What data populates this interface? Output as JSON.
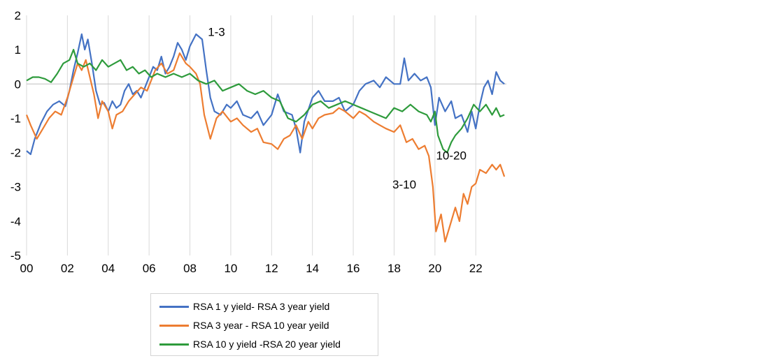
{
  "chart_data": {
    "type": "line",
    "title": "",
    "xlabel": "",
    "ylabel": "",
    "xlim": [
      2000,
      2023.5
    ],
    "ylim": [
      -5,
      2
    ],
    "y_ticks": [
      2,
      1,
      0,
      -1,
      -2,
      -3,
      -4,
      -5
    ],
    "y_tick_labels": [
      "2",
      "1",
      "0",
      "-1",
      "-2",
      "-3",
      "-4",
      "-5"
    ],
    "x_ticks": [
      2000,
      2002,
      2004,
      2006,
      2008,
      2010,
      2012,
      2014,
      2016,
      2018,
      2020,
      2022
    ],
    "x_tick_labels": [
      "00",
      "02",
      "04",
      "06",
      "08",
      "10",
      "12",
      "14",
      "16",
      "18",
      "20",
      "22"
    ],
    "grid": "vertical",
    "legend_position": "bottom",
    "colors": {
      "s1": "#4472c4",
      "s2": "#ed7d31",
      "s3": "#2e9b3c",
      "grid": "#d9d9d9",
      "zero": "#bfbfbf"
    },
    "annotations": [
      {
        "text": "1-3",
        "x": 2009.3,
        "y": 1.4
      },
      {
        "text": "10-20",
        "x": 2020.8,
        "y": -2.2
      },
      {
        "text": "3-10",
        "x": 2018.5,
        "y": -3.05
      }
    ],
    "series": [
      {
        "name": "RSA 1 y yield- RSA 3 year yield",
        "points": [
          [
            2000.0,
            -1.95
          ],
          [
            2000.2,
            -2.05
          ],
          [
            2000.4,
            -1.6
          ],
          [
            2000.7,
            -1.15
          ],
          [
            2001.0,
            -0.8
          ],
          [
            2001.3,
            -0.6
          ],
          [
            2001.6,
            -0.5
          ],
          [
            2001.9,
            -0.65
          ],
          [
            2002.1,
            -0.2
          ],
          [
            2002.3,
            0.4
          ],
          [
            2002.5,
            0.9
          ],
          [
            2002.7,
            1.45
          ],
          [
            2002.85,
            1.0
          ],
          [
            2003.0,
            1.3
          ],
          [
            2003.2,
            0.6
          ],
          [
            2003.4,
            -0.2
          ],
          [
            2003.6,
            -0.6
          ],
          [
            2003.8,
            -0.55
          ],
          [
            2004.0,
            -0.8
          ],
          [
            2004.2,
            -0.5
          ],
          [
            2004.4,
            -0.7
          ],
          [
            2004.6,
            -0.6
          ],
          [
            2004.8,
            -0.2
          ],
          [
            2005.0,
            0.0
          ],
          [
            2005.2,
            -0.3
          ],
          [
            2005.4,
            -0.2
          ],
          [
            2005.6,
            -0.4
          ],
          [
            2005.8,
            -0.1
          ],
          [
            2006.0,
            0.2
          ],
          [
            2006.2,
            0.5
          ],
          [
            2006.4,
            0.4
          ],
          [
            2006.6,
            0.8
          ],
          [
            2006.8,
            0.3
          ],
          [
            2007.0,
            0.5
          ],
          [
            2007.2,
            0.8
          ],
          [
            2007.4,
            1.2
          ],
          [
            2007.6,
            1.0
          ],
          [
            2007.8,
            0.7
          ],
          [
            2008.0,
            1.1
          ],
          [
            2008.3,
            1.45
          ],
          [
            2008.6,
            1.3
          ],
          [
            2008.8,
            0.4
          ],
          [
            2009.0,
            -0.4
          ],
          [
            2009.2,
            -0.8
          ],
          [
            2009.5,
            -0.9
          ],
          [
            2009.8,
            -0.6
          ],
          [
            2010.0,
            -0.7
          ],
          [
            2010.3,
            -0.5
          ],
          [
            2010.6,
            -0.9
          ],
          [
            2011.0,
            -1.0
          ],
          [
            2011.3,
            -0.8
          ],
          [
            2011.6,
            -1.2
          ],
          [
            2012.0,
            -0.9
          ],
          [
            2012.3,
            -0.3
          ],
          [
            2012.6,
            -0.8
          ],
          [
            2013.0,
            -0.9
          ],
          [
            2013.2,
            -1.3
          ],
          [
            2013.4,
            -2.0
          ],
          [
            2013.6,
            -1.1
          ],
          [
            2014.0,
            -0.4
          ],
          [
            2014.3,
            -0.2
          ],
          [
            2014.6,
            -0.5
          ],
          [
            2015.0,
            -0.5
          ],
          [
            2015.3,
            -0.4
          ],
          [
            2015.6,
            -0.8
          ],
          [
            2016.0,
            -0.6
          ],
          [
            2016.3,
            -0.2
          ],
          [
            2016.6,
            0.0
          ],
          [
            2017.0,
            0.1
          ],
          [
            2017.3,
            -0.1
          ],
          [
            2017.6,
            0.2
          ],
          [
            2018.0,
            0.0
          ],
          [
            2018.3,
            0.0
          ],
          [
            2018.5,
            0.75
          ],
          [
            2018.7,
            0.1
          ],
          [
            2019.0,
            0.3
          ],
          [
            2019.3,
            0.1
          ],
          [
            2019.6,
            0.2
          ],
          [
            2019.8,
            -0.1
          ],
          [
            2020.0,
            -1.2
          ],
          [
            2020.2,
            -0.4
          ],
          [
            2020.5,
            -0.8
          ],
          [
            2020.8,
            -0.5
          ],
          [
            2021.0,
            -1.0
          ],
          [
            2021.3,
            -0.9
          ],
          [
            2021.6,
            -1.4
          ],
          [
            2021.8,
            -0.8
          ],
          [
            2022.0,
            -1.3
          ],
          [
            2022.2,
            -0.6
          ],
          [
            2022.4,
            -0.1
          ],
          [
            2022.6,
            0.1
          ],
          [
            2022.8,
            -0.3
          ],
          [
            2023.0,
            0.35
          ],
          [
            2023.2,
            0.1
          ],
          [
            2023.4,
            0.0
          ]
        ]
      },
      {
        "name": "RSA 3 year - RSA 10 year yeild",
        "points": [
          [
            2000.0,
            -0.9
          ],
          [
            2000.2,
            -1.2
          ],
          [
            2000.5,
            -1.6
          ],
          [
            2000.8,
            -1.3
          ],
          [
            2001.1,
            -1.0
          ],
          [
            2001.4,
            -0.8
          ],
          [
            2001.7,
            -0.9
          ],
          [
            2002.0,
            -0.4
          ],
          [
            2002.3,
            0.2
          ],
          [
            2002.5,
            0.6
          ],
          [
            2002.7,
            0.4
          ],
          [
            2002.9,
            0.7
          ],
          [
            2003.1,
            0.2
          ],
          [
            2003.3,
            -0.3
          ],
          [
            2003.5,
            -1.0
          ],
          [
            2003.7,
            -0.5
          ],
          [
            2004.0,
            -0.8
          ],
          [
            2004.2,
            -1.3
          ],
          [
            2004.4,
            -0.9
          ],
          [
            2004.7,
            -0.8
          ],
          [
            2005.0,
            -0.5
          ],
          [
            2005.3,
            -0.3
          ],
          [
            2005.6,
            -0.1
          ],
          [
            2005.9,
            -0.2
          ],
          [
            2006.1,
            0.1
          ],
          [
            2006.3,
            0.4
          ],
          [
            2006.6,
            0.6
          ],
          [
            2006.9,
            0.3
          ],
          [
            2007.2,
            0.4
          ],
          [
            2007.5,
            0.9
          ],
          [
            2007.8,
            0.6
          ],
          [
            2008.0,
            0.5
          ],
          [
            2008.3,
            0.3
          ],
          [
            2008.5,
            0.0
          ],
          [
            2008.7,
            -0.9
          ],
          [
            2009.0,
            -1.6
          ],
          [
            2009.3,
            -1.0
          ],
          [
            2009.6,
            -0.8
          ],
          [
            2010.0,
            -1.1
          ],
          [
            2010.3,
            -1.0
          ],
          [
            2010.6,
            -1.2
          ],
          [
            2011.0,
            -1.4
          ],
          [
            2011.3,
            -1.3
          ],
          [
            2011.6,
            -1.7
          ],
          [
            2012.0,
            -1.75
          ],
          [
            2012.3,
            -1.9
          ],
          [
            2012.6,
            -1.6
          ],
          [
            2012.9,
            -1.5
          ],
          [
            2013.2,
            -1.2
          ],
          [
            2013.5,
            -1.6
          ],
          [
            2013.8,
            -1.1
          ],
          [
            2014.0,
            -1.3
          ],
          [
            2014.3,
            -1.0
          ],
          [
            2014.6,
            -0.9
          ],
          [
            2015.0,
            -0.85
          ],
          [
            2015.3,
            -0.7
          ],
          [
            2015.6,
            -0.8
          ],
          [
            2016.0,
            -1.0
          ],
          [
            2016.3,
            -0.8
          ],
          [
            2016.6,
            -0.9
          ],
          [
            2017.0,
            -1.1
          ],
          [
            2017.3,
            -1.2
          ],
          [
            2017.6,
            -1.3
          ],
          [
            2018.0,
            -1.4
          ],
          [
            2018.3,
            -1.2
          ],
          [
            2018.6,
            -1.7
          ],
          [
            2018.9,
            -1.6
          ],
          [
            2019.2,
            -1.9
          ],
          [
            2019.5,
            -1.8
          ],
          [
            2019.7,
            -2.1
          ],
          [
            2019.9,
            -3.0
          ],
          [
            2020.05,
            -4.3
          ],
          [
            2020.3,
            -3.8
          ],
          [
            2020.5,
            -4.6
          ],
          [
            2020.7,
            -4.2
          ],
          [
            2021.0,
            -3.6
          ],
          [
            2021.2,
            -4.0
          ],
          [
            2021.4,
            -3.2
          ],
          [
            2021.6,
            -3.5
          ],
          [
            2021.8,
            -3.0
          ],
          [
            2022.0,
            -2.9
          ],
          [
            2022.2,
            -2.5
          ],
          [
            2022.5,
            -2.6
          ],
          [
            2022.8,
            -2.35
          ],
          [
            2023.0,
            -2.5
          ],
          [
            2023.2,
            -2.35
          ],
          [
            2023.4,
            -2.7
          ]
        ]
      },
      {
        "name": "RSA 10 y yield -RSA 20 year yield",
        "points": [
          [
            2000.0,
            0.1
          ],
          [
            2000.3,
            0.2
          ],
          [
            2000.6,
            0.2
          ],
          [
            2000.9,
            0.15
          ],
          [
            2001.2,
            0.05
          ],
          [
            2001.5,
            0.3
          ],
          [
            2001.8,
            0.6
          ],
          [
            2002.1,
            0.7
          ],
          [
            2002.3,
            1.0
          ],
          [
            2002.5,
            0.6
          ],
          [
            2002.8,
            0.5
          ],
          [
            2003.1,
            0.6
          ],
          [
            2003.4,
            0.4
          ],
          [
            2003.7,
            0.7
          ],
          [
            2004.0,
            0.5
          ],
          [
            2004.3,
            0.6
          ],
          [
            2004.6,
            0.7
          ],
          [
            2004.9,
            0.4
          ],
          [
            2005.2,
            0.5
          ],
          [
            2005.5,
            0.3
          ],
          [
            2005.8,
            0.4
          ],
          [
            2006.1,
            0.2
          ],
          [
            2006.4,
            0.3
          ],
          [
            2006.8,
            0.2
          ],
          [
            2007.2,
            0.3
          ],
          [
            2007.6,
            0.2
          ],
          [
            2008.0,
            0.3
          ],
          [
            2008.4,
            0.1
          ],
          [
            2008.8,
            0.0
          ],
          [
            2009.2,
            0.1
          ],
          [
            2009.6,
            -0.2
          ],
          [
            2010.0,
            -0.1
          ],
          [
            2010.4,
            0.0
          ],
          [
            2010.8,
            -0.2
          ],
          [
            2011.2,
            -0.3
          ],
          [
            2011.6,
            -0.2
          ],
          [
            2012.0,
            -0.4
          ],
          [
            2012.4,
            -0.5
          ],
          [
            2012.8,
            -1.0
          ],
          [
            2013.2,
            -1.1
          ],
          [
            2013.6,
            -0.9
          ],
          [
            2014.0,
            -0.6
          ],
          [
            2014.4,
            -0.5
          ],
          [
            2014.8,
            -0.7
          ],
          [
            2015.2,
            -0.6
          ],
          [
            2015.6,
            -0.5
          ],
          [
            2016.0,
            -0.6
          ],
          [
            2016.4,
            -0.7
          ],
          [
            2016.8,
            -0.8
          ],
          [
            2017.2,
            -0.9
          ],
          [
            2017.6,
            -1.0
          ],
          [
            2018.0,
            -0.7
          ],
          [
            2018.4,
            -0.8
          ],
          [
            2018.8,
            -0.6
          ],
          [
            2019.2,
            -0.8
          ],
          [
            2019.6,
            -0.9
          ],
          [
            2019.8,
            -1.1
          ],
          [
            2020.0,
            -0.8
          ],
          [
            2020.15,
            -1.5
          ],
          [
            2020.4,
            -1.9
          ],
          [
            2020.6,
            -2.0
          ],
          [
            2020.8,
            -1.7
          ],
          [
            2021.0,
            -1.5
          ],
          [
            2021.3,
            -1.3
          ],
          [
            2021.6,
            -1.0
          ],
          [
            2021.9,
            -0.6
          ],
          [
            2022.2,
            -0.8
          ],
          [
            2022.5,
            -0.6
          ],
          [
            2022.8,
            -0.9
          ],
          [
            2023.0,
            -0.7
          ],
          [
            2023.2,
            -0.95
          ],
          [
            2023.4,
            -0.9
          ]
        ]
      }
    ]
  }
}
